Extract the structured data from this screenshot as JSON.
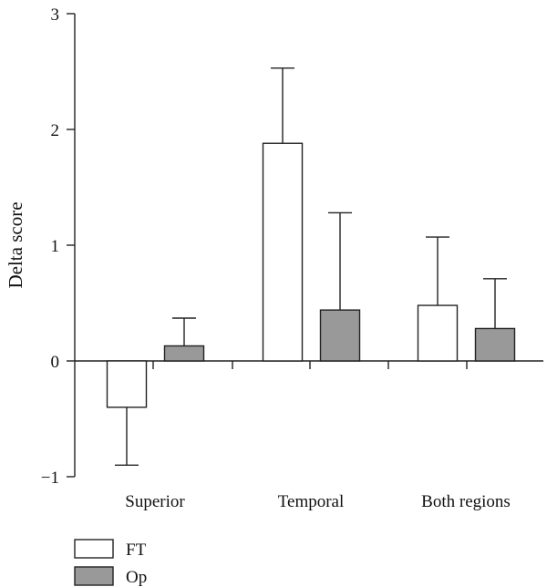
{
  "chart_data": {
    "type": "bar",
    "title": "",
    "xlabel": "",
    "ylabel": "Delta score",
    "ylim": [
      -1,
      3
    ],
    "yticks": [
      -1,
      0,
      1,
      2,
      3
    ],
    "ytick_labels": [
      "−1",
      "0",
      "1",
      "2",
      "3"
    ],
    "categories": [
      "Superior",
      "Temporal",
      "Both regions"
    ],
    "series": [
      {
        "name": "FT",
        "color": "#ffffff",
        "values": [
          -0.4,
          1.88,
          0.48
        ],
        "error": [
          0.5,
          0.65,
          0.59
        ]
      },
      {
        "name": "Op",
        "color": "#999999",
        "values": [
          0.13,
          0.44,
          0.28
        ],
        "error": [
          0.24,
          0.84,
          0.43
        ]
      }
    ],
    "grid": false,
    "legend_position": "bottom-left"
  }
}
